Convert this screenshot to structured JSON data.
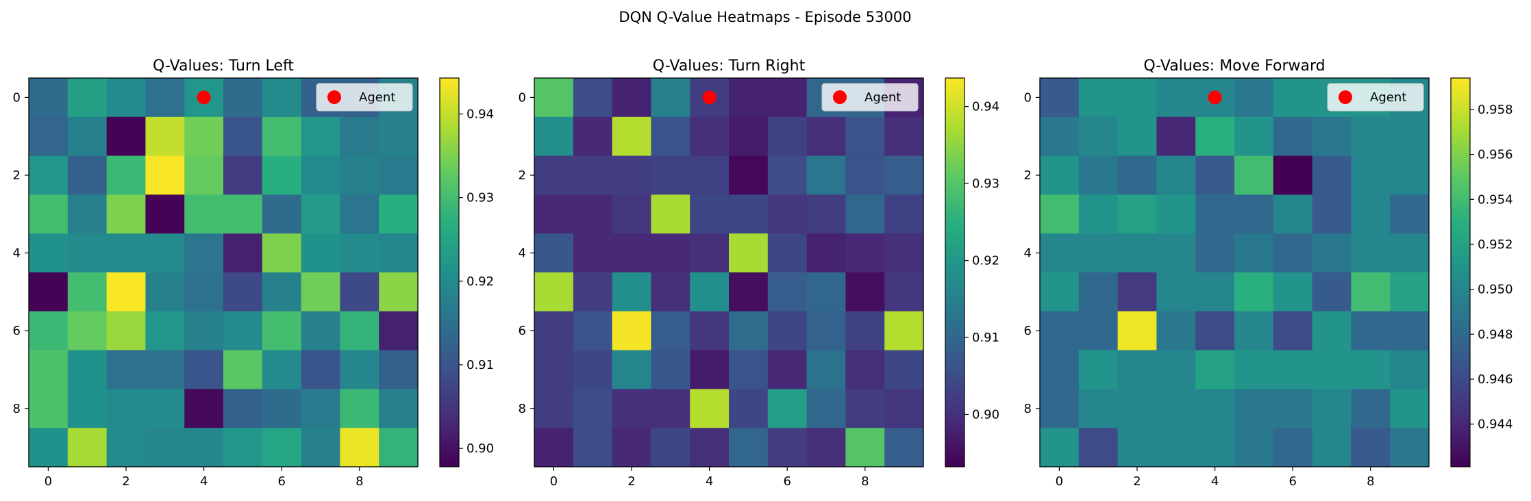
{
  "figure": {
    "title": "DQN Q-Value Heatmaps - Episode 53000"
  },
  "agent": {
    "row": 0,
    "col": 4,
    "color": "#ff0000",
    "legend_label": "Agent"
  },
  "chart_data": [
    {
      "type": "heatmap",
      "title": "Q-Values: Turn Left",
      "xlabel": "",
      "ylabel": "",
      "x_ticks": [
        0,
        2,
        4,
        6,
        8
      ],
      "y_ticks": [
        0,
        2,
        4,
        6,
        8
      ],
      "colormap": "viridis",
      "vmin": 0.8978,
      "vmax": 0.9443,
      "colorbar_ticks": [
        "0.90",
        "0.91",
        "0.92",
        "0.93",
        "0.94"
      ],
      "colorbar_tick_values": [
        0.9,
        0.91,
        0.92,
        0.93,
        0.94
      ],
      "legend": {
        "label": "Agent",
        "placement": "upper right"
      },
      "values": [
        [
          0.914,
          0.924,
          0.92,
          0.915,
          0.922,
          0.914,
          0.92,
          0.912,
          0.912,
          0.918
        ],
        [
          0.913,
          0.918,
          0.898,
          0.94,
          0.934,
          0.91,
          0.93,
          0.922,
          0.917,
          0.918
        ],
        [
          0.922,
          0.912,
          0.929,
          0.944,
          0.933,
          0.906,
          0.927,
          0.92,
          0.918,
          0.917
        ],
        [
          0.93,
          0.918,
          0.935,
          0.898,
          0.93,
          0.93,
          0.914,
          0.923,
          0.916,
          0.927
        ],
        [
          0.921,
          0.92,
          0.92,
          0.92,
          0.916,
          0.902,
          0.935,
          0.921,
          0.92,
          0.919
        ],
        [
          0.898,
          0.93,
          0.944,
          0.918,
          0.915,
          0.908,
          0.918,
          0.934,
          0.908,
          0.936
        ],
        [
          0.929,
          0.933,
          0.937,
          0.922,
          0.918,
          0.92,
          0.93,
          0.918,
          0.928,
          0.902
        ],
        [
          0.931,
          0.921,
          0.915,
          0.915,
          0.91,
          0.932,
          0.92,
          0.91,
          0.919,
          0.912
        ],
        [
          0.931,
          0.921,
          0.92,
          0.92,
          0.899,
          0.912,
          0.914,
          0.917,
          0.929,
          0.918
        ],
        [
          0.921,
          0.938,
          0.92,
          0.919,
          0.919,
          0.922,
          0.925,
          0.918,
          0.943,
          0.928
        ]
      ]
    },
    {
      "type": "heatmap",
      "title": "Q-Values: Turn Right",
      "xlabel": "",
      "ylabel": "",
      "x_ticks": [
        0,
        2,
        4,
        6,
        8
      ],
      "y_ticks": [
        0,
        2,
        4,
        6,
        8
      ],
      "colormap": "viridis",
      "vmin": 0.8932,
      "vmax": 0.9437,
      "colorbar_ticks": [
        "0.90",
        "0.91",
        "0.92",
        "0.93",
        "0.94"
      ],
      "colorbar_tick_values": [
        0.9,
        0.91,
        0.92,
        0.93,
        0.94
      ],
      "legend": {
        "label": "Agent",
        "placement": "upper right"
      },
      "values": [
        [
          0.93,
          0.905,
          0.898,
          0.915,
          0.902,
          0.898,
          0.898,
          0.91,
          0.91,
          0.898
        ],
        [
          0.918,
          0.899,
          0.938,
          0.906,
          0.9,
          0.897,
          0.903,
          0.9,
          0.906,
          0.9
        ],
        [
          0.902,
          0.902,
          0.902,
          0.903,
          0.903,
          0.894,
          0.905,
          0.913,
          0.906,
          0.908
        ],
        [
          0.899,
          0.899,
          0.901,
          0.937,
          0.904,
          0.904,
          0.901,
          0.902,
          0.91,
          0.903
        ],
        [
          0.907,
          0.899,
          0.899,
          0.899,
          0.9,
          0.937,
          0.904,
          0.898,
          0.899,
          0.9
        ],
        [
          0.937,
          0.902,
          0.918,
          0.9,
          0.918,
          0.895,
          0.908,
          0.91,
          0.895,
          0.901
        ],
        [
          0.902,
          0.906,
          0.943,
          0.908,
          0.901,
          0.911,
          0.904,
          0.909,
          0.903,
          0.938
        ],
        [
          0.902,
          0.904,
          0.916,
          0.907,
          0.897,
          0.906,
          0.899,
          0.912,
          0.9,
          0.904
        ],
        [
          0.902,
          0.905,
          0.9,
          0.9,
          0.938,
          0.904,
          0.921,
          0.91,
          0.902,
          0.901
        ],
        [
          0.898,
          0.905,
          0.899,
          0.904,
          0.9,
          0.91,
          0.902,
          0.9,
          0.93,
          0.908
        ]
      ]
    },
    {
      "type": "heatmap",
      "title": "Q-Values: Move Forward",
      "xlabel": "",
      "ylabel": "",
      "x_ticks": [
        0,
        2,
        4,
        6,
        8
      ],
      "y_ticks": [
        0,
        2,
        4,
        6,
        8
      ],
      "colormap": "viridis",
      "vmin": 0.9421,
      "vmax": 0.9594,
      "colorbar_ticks": [
        "0.944",
        "0.946",
        "0.948",
        "0.950",
        "0.952",
        "0.954",
        "0.956",
        "0.958"
      ],
      "colorbar_tick_values": [
        0.944,
        0.946,
        0.948,
        0.95,
        0.952,
        0.954,
        0.956,
        0.958
      ],
      "legend": {
        "label": "Agent",
        "placement": "upper right"
      },
      "values": [
        [
          0.947,
          0.951,
          0.951,
          0.95,
          0.95,
          0.949,
          0.951,
          0.951,
          0.951,
          0.95
        ],
        [
          0.949,
          0.95,
          0.951,
          0.944,
          0.953,
          0.951,
          0.948,
          0.949,
          0.95,
          0.95
        ],
        [
          0.951,
          0.949,
          0.948,
          0.95,
          0.947,
          0.954,
          0.942,
          0.947,
          0.95,
          0.95
        ],
        [
          0.954,
          0.951,
          0.952,
          0.951,
          0.948,
          0.948,
          0.95,
          0.947,
          0.95,
          0.948
        ],
        [
          0.95,
          0.95,
          0.95,
          0.95,
          0.948,
          0.949,
          0.948,
          0.949,
          0.95,
          0.95
        ],
        [
          0.951,
          0.948,
          0.945,
          0.95,
          0.95,
          0.953,
          0.951,
          0.947,
          0.954,
          0.952
        ],
        [
          0.948,
          0.948,
          0.959,
          0.949,
          0.946,
          0.95,
          0.946,
          0.951,
          0.948,
          0.948
        ],
        [
          0.948,
          0.951,
          0.95,
          0.95,
          0.952,
          0.951,
          0.951,
          0.951,
          0.951,
          0.95
        ],
        [
          0.948,
          0.95,
          0.95,
          0.95,
          0.95,
          0.949,
          0.949,
          0.95,
          0.948,
          0.951
        ],
        [
          0.951,
          0.946,
          0.95,
          0.95,
          0.95,
          0.949,
          0.948,
          0.95,
          0.947,
          0.949
        ]
      ]
    }
  ]
}
